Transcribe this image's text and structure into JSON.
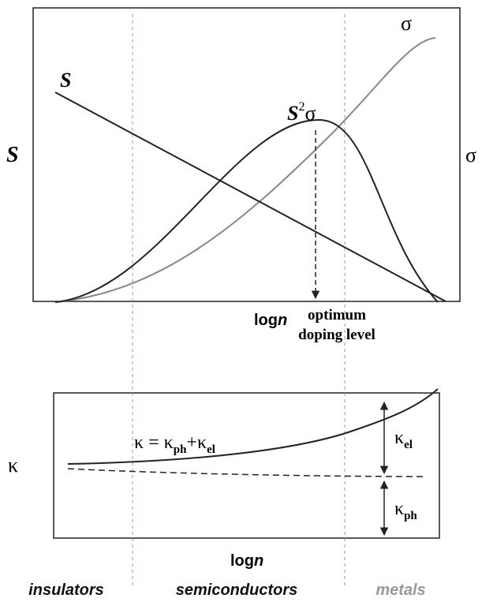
{
  "top_panel": {
    "curve_labels": {
      "s": "S",
      "s2sigma": {
        "base": "S",
        "sup": "2",
        "tail": "σ"
      },
      "sigma": "σ"
    },
    "y_label_left": "S",
    "y_label_right": "σ",
    "x_label": {
      "base": "log",
      "var": "n"
    },
    "annotation": [
      "optimum",
      "doping level"
    ]
  },
  "bottom_panel": {
    "y_label": "κ",
    "equation": {
      "lhs": "κ = κ",
      "sub1": "ph",
      "mid": "+κ",
      "sub2": "el"
    },
    "kappa_el": {
      "base": "κ",
      "sub": "el"
    },
    "kappa_ph": {
      "base": "κ",
      "sub": "ph"
    },
    "x_label": {
      "base": "log",
      "var": "n"
    }
  },
  "regions": [
    "insulators",
    "semiconductors",
    "metals"
  ]
}
